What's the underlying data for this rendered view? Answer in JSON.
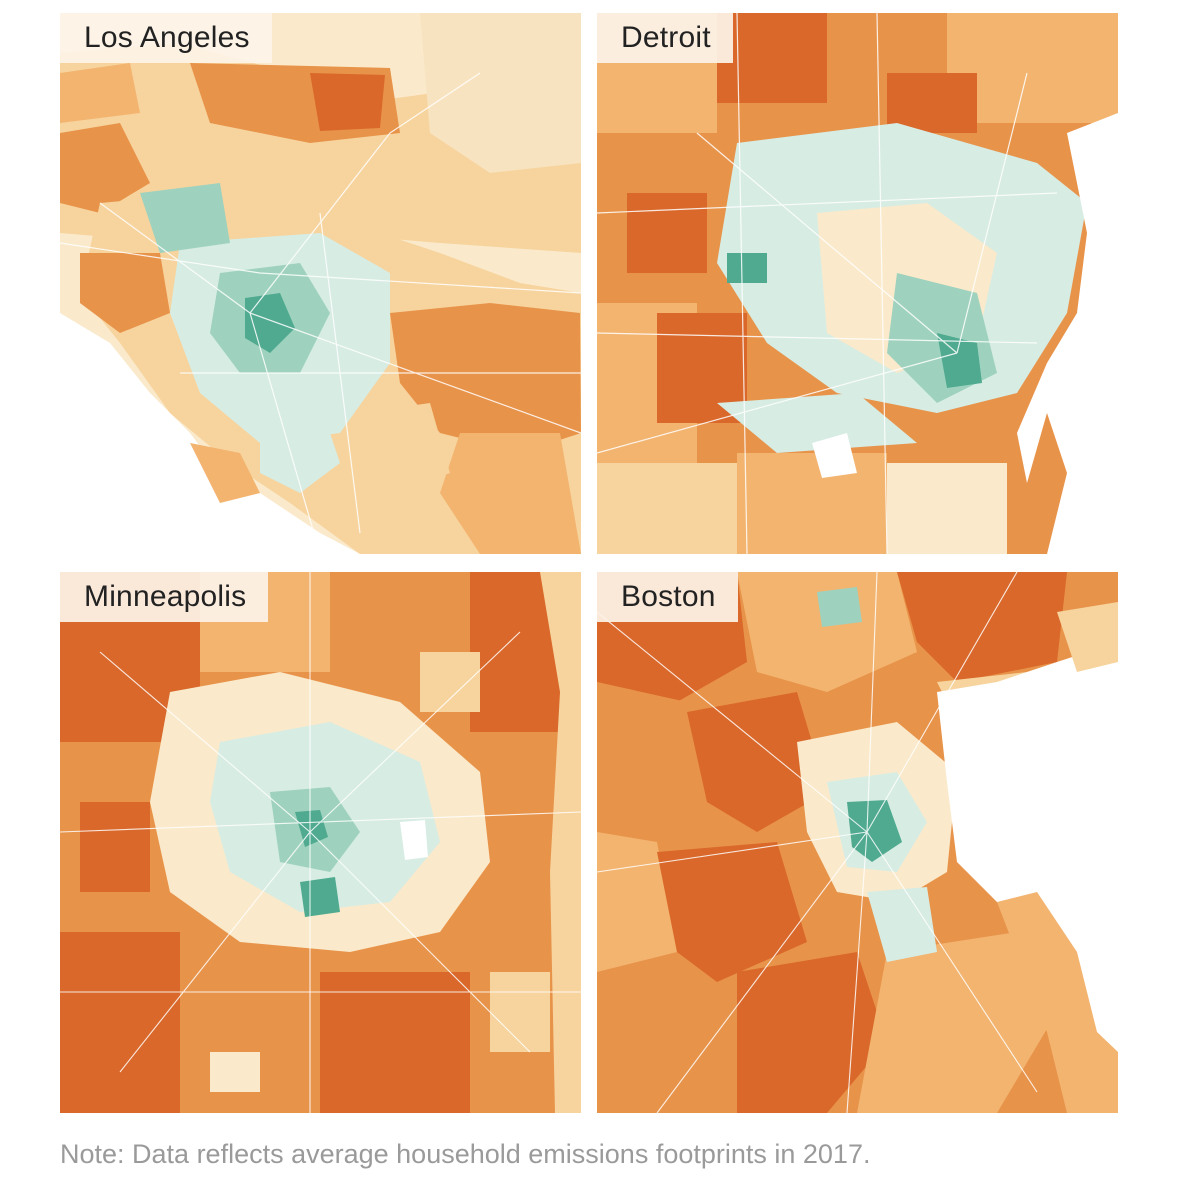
{
  "maps": [
    {
      "name": "Los Angeles"
    },
    {
      "name": "Detroit"
    },
    {
      "name": "Minneapolis"
    },
    {
      "name": "Boston"
    }
  ],
  "note": "Note: Data reflects average household emissions footprints in 2017.",
  "colors": {
    "high_emissions": "#d9682a",
    "medium_high": "#e8934a",
    "medium": "#f2b46f",
    "medium_low": "#f7d49e",
    "low": "#faeacb",
    "lowest_light": "#d7ece3",
    "lowest_mid": "#9fd2be",
    "lowest_dark": "#4faa8f",
    "background": "#ffffff"
  }
}
